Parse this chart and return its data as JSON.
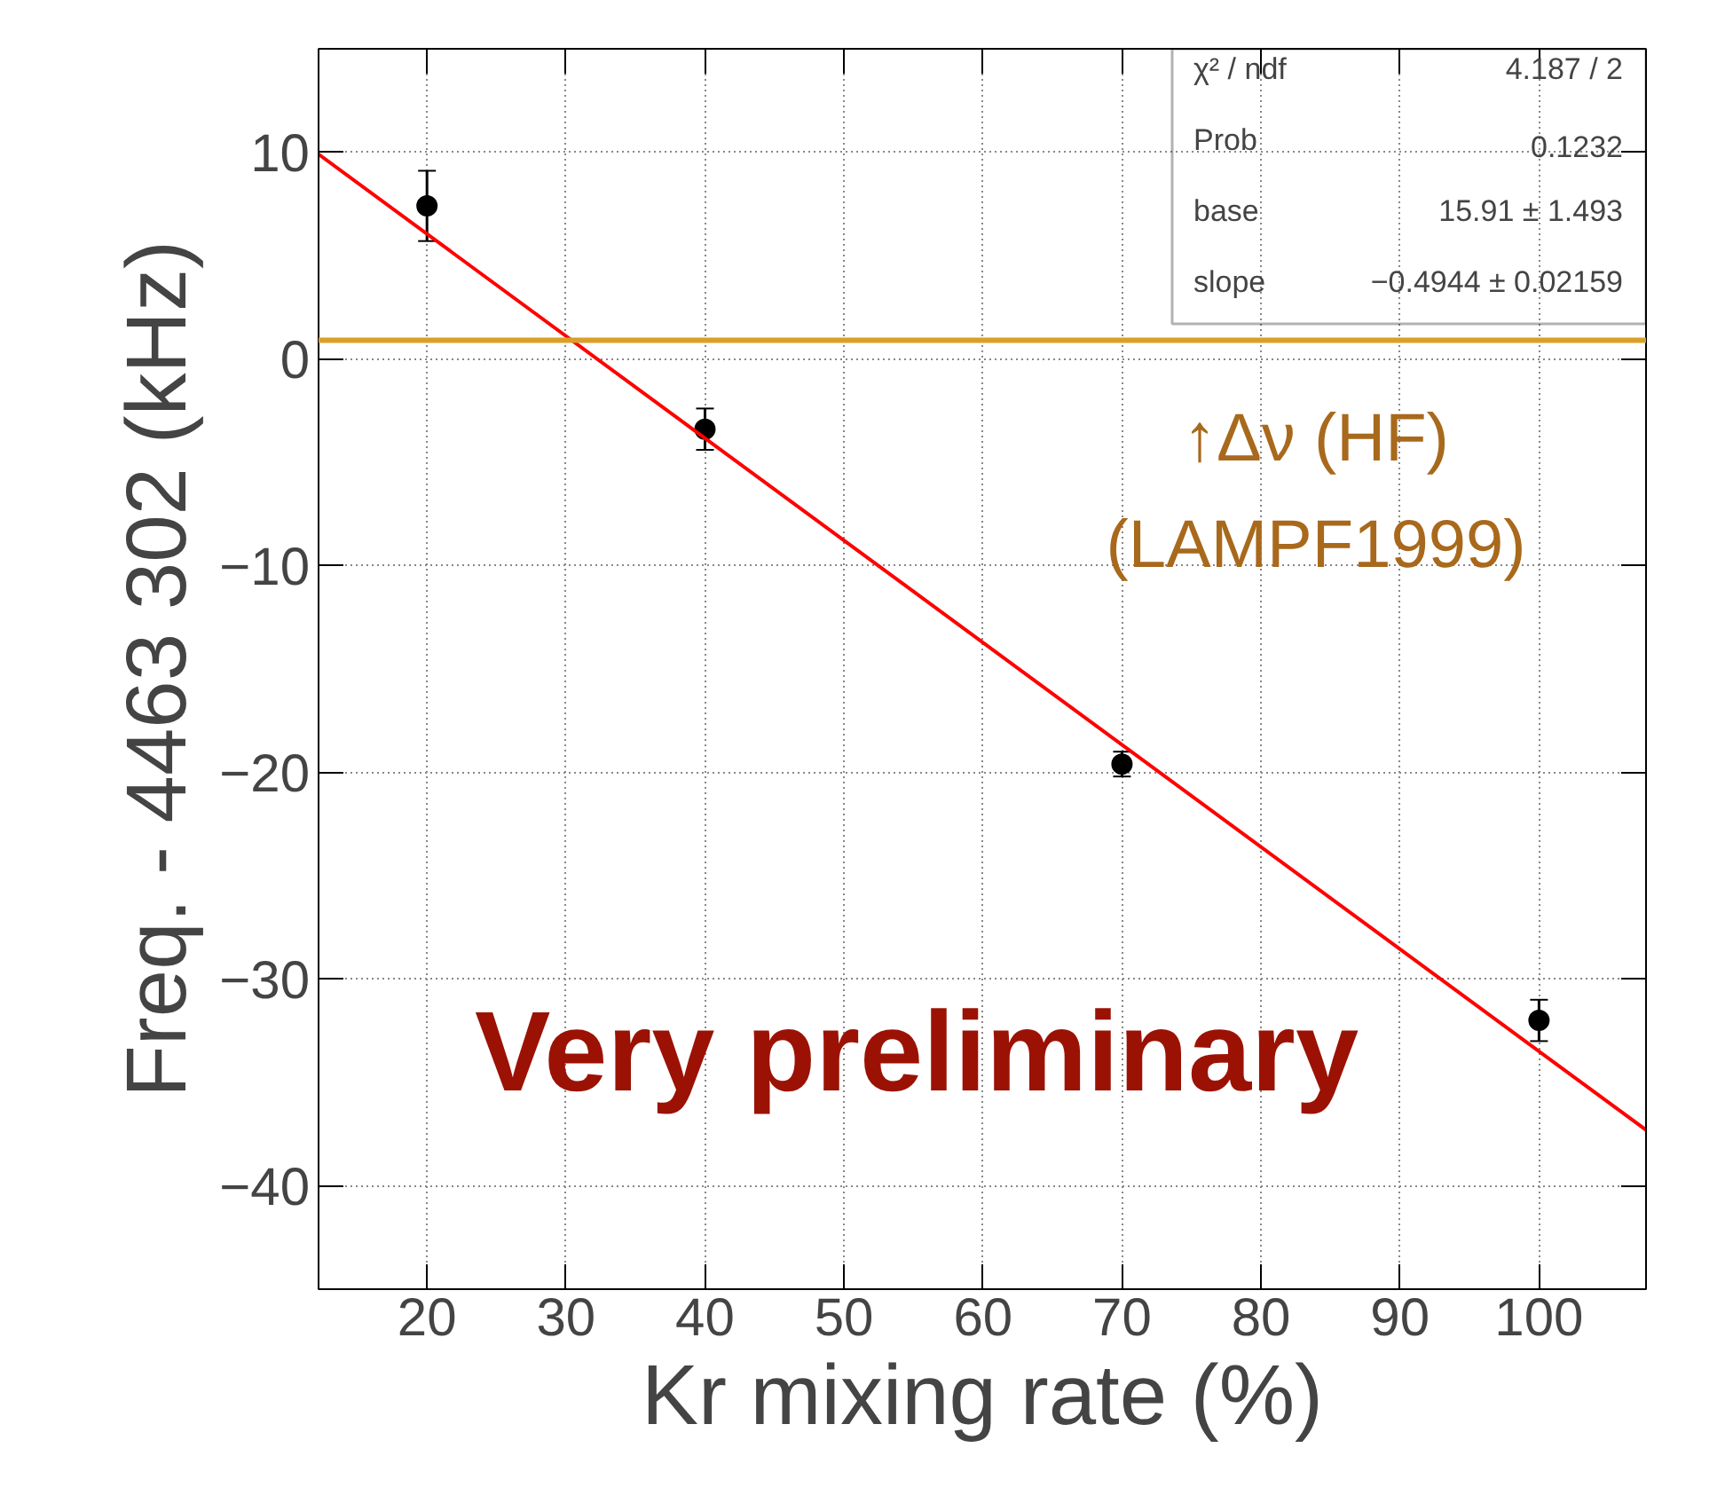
{
  "chart_data": {
    "type": "scatter",
    "xlabel": "Kr mixing rate (%)",
    "ylabel": "Freq. - 4463 302 (kHz)",
    "series": [
      {
        "color": "#000000",
        "x": [
          20,
          40,
          70,
          100
        ],
        "values": [
          7.4,
          -3.4,
          -19.6,
          -32.0
        ],
        "errors": [
          1.7,
          1.0,
          0.6,
          1.0
        ],
        "marker": "circle"
      },
      {
        "type": "line",
        "color": "#ff0000",
        "x": [
          12.2,
          107.7
        ],
        "values": [
          9.9,
          -37.3
        ]
      }
    ],
    "xlim": [
      12.2,
      107.7
    ],
    "ylim": [
      -45,
      15
    ],
    "xticks": [
      20,
      30,
      40,
      50,
      60,
      70,
      80,
      90,
      100
    ],
    "yticks": [
      {
        "value": -40,
        "label": "−40"
      },
      {
        "value": -30,
        "label": "−30"
      },
      {
        "value": -20,
        "label": "−20"
      },
      {
        "value": -10,
        "label": "−10"
      },
      0,
      10
    ],
    "ref_lines": [
      {
        "axis": "y",
        "value": 0.9,
        "label": "↑Δν (HF)\n(LAMPF1999)",
        "color": "#d9a027"
      }
    ],
    "annotations": [
      "χ² / ndf\t4.187 / 2",
      "Prob\t0.1232",
      "base\t15.91 ± 1.493",
      "slope\t−0.4944 ± 0.02159",
      "Very preliminary"
    ],
    "grid": true,
    "line_style": "solid"
  }
}
